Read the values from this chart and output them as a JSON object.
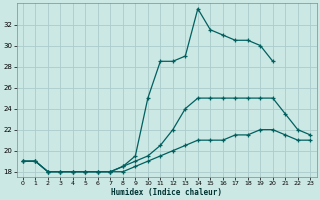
{
  "xlabel": "Humidex (Indice chaleur)",
  "xlim": [
    -0.5,
    23.5
  ],
  "ylim": [
    17.5,
    34.0
  ],
  "yticks": [
    18,
    20,
    22,
    24,
    26,
    28,
    30,
    32
  ],
  "xticks": [
    0,
    1,
    2,
    3,
    4,
    5,
    6,
    7,
    8,
    9,
    10,
    11,
    12,
    13,
    14,
    15,
    16,
    17,
    18,
    19,
    20,
    21,
    22,
    23
  ],
  "bg_color": "#cce8e4",
  "grid_color": "#aacccc",
  "line_color": "#006060",
  "lines": [
    {
      "x": [
        0,
        1,
        2,
        3,
        4,
        5,
        6,
        7,
        8,
        9,
        10,
        11,
        12,
        13,
        14,
        15,
        16,
        17,
        18,
        19,
        20,
        21,
        22,
        23
      ],
      "y": [
        19,
        19,
        18,
        18,
        18,
        18,
        18,
        18,
        18,
        18.5,
        19,
        19.5,
        20,
        20.5,
        21,
        21,
        21,
        21.5,
        21.5,
        22,
        22,
        21.5,
        21,
        21
      ]
    },
    {
      "x": [
        0,
        1,
        2,
        3,
        4,
        5,
        6,
        7,
        8,
        9,
        10,
        11,
        12,
        13,
        14,
        15,
        16,
        17,
        18,
        19,
        20,
        21,
        22,
        23
      ],
      "y": [
        19,
        19,
        18,
        18,
        18,
        18,
        18,
        18,
        18.5,
        19,
        19.5,
        20.5,
        22,
        24,
        25,
        25,
        25,
        25,
        25,
        25,
        25,
        23.5,
        22,
        21.5
      ]
    },
    {
      "x": [
        0,
        1,
        2,
        3,
        4,
        5,
        6,
        7,
        8,
        9,
        10,
        11,
        12,
        13,
        14,
        15,
        16,
        17,
        18,
        19,
        20,
        21,
        22,
        23
      ],
      "y": [
        19,
        19,
        18,
        18,
        18,
        18,
        18,
        18,
        18.5,
        19.5,
        25,
        28.5,
        28.5,
        29,
        33.5,
        31.5,
        31,
        30.5,
        30.5,
        30,
        28.5,
        null,
        null,
        null
      ]
    }
  ]
}
